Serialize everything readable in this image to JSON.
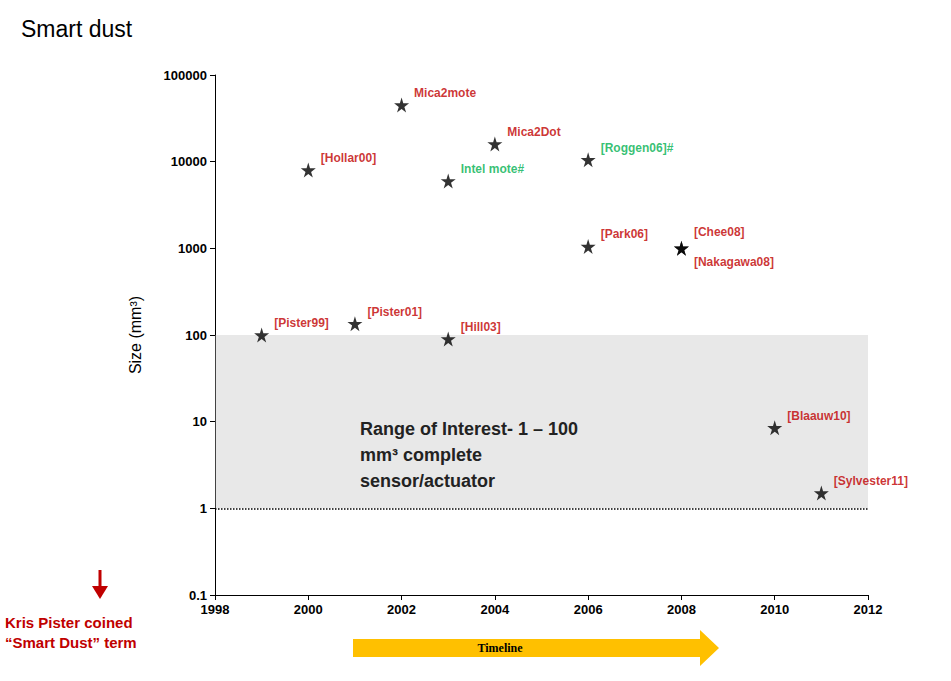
{
  "chart_data": {
    "type": "scatter",
    "title": "Smart dust",
    "ylabel": "Size (mm³)",
    "xlabel": "Timeline",
    "log": "y",
    "grid": false,
    "marker": "star",
    "color": "#000000",
    "xlim": [
      1998,
      2012
    ],
    "xticks": [
      1998,
      2000,
      2002,
      2004,
      2006,
      2008,
      2010,
      2012
    ],
    "ylim": [
      0.1,
      100000
    ],
    "yticks": [
      0.1,
      1,
      10,
      100,
      1000,
      10000,
      100000
    ],
    "x": [
      1999,
      2000,
      2001,
      2002,
      2003,
      2003,
      2004,
      2006,
      2006,
      2008,
      2008,
      2010,
      2011
    ],
    "values": [
      100,
      8000,
      135,
      45000,
      6000,
      90,
      16000,
      10500,
      1050,
      1000,
      1000,
      8.5,
      1.5
    ],
    "point_labels": [
      "[Pister99]",
      "[Hollar00]",
      "[Pister01]",
      "Mica2mote",
      "Intel mote#",
      "[Hill03]",
      "Mica2Dot",
      "[Roggen06]#",
      "[Park06]",
      "[Chee08]",
      "[Nakagawa08]",
      "[Blaauw10]",
      "[Sylvester11]"
    ],
    "label_colors": [
      "#c00000",
      "#c00000",
      "#c00000",
      "#c00000",
      "#00b050",
      "#c00000",
      "#c00000",
      "#00b050",
      "#c00000",
      "#c00000",
      "#c00000",
      "#c00000",
      "#c00000"
    ],
    "region": [
      1,
      100
    ],
    "region_label": [
      "Range of Interest- 1 – 100",
      "mm³ complete",
      "sensor/actuator"
    ],
    "reference_line": 1,
    "note": [
      "Kris Pister coined",
      "“Smart Dust” term"
    ]
  }
}
